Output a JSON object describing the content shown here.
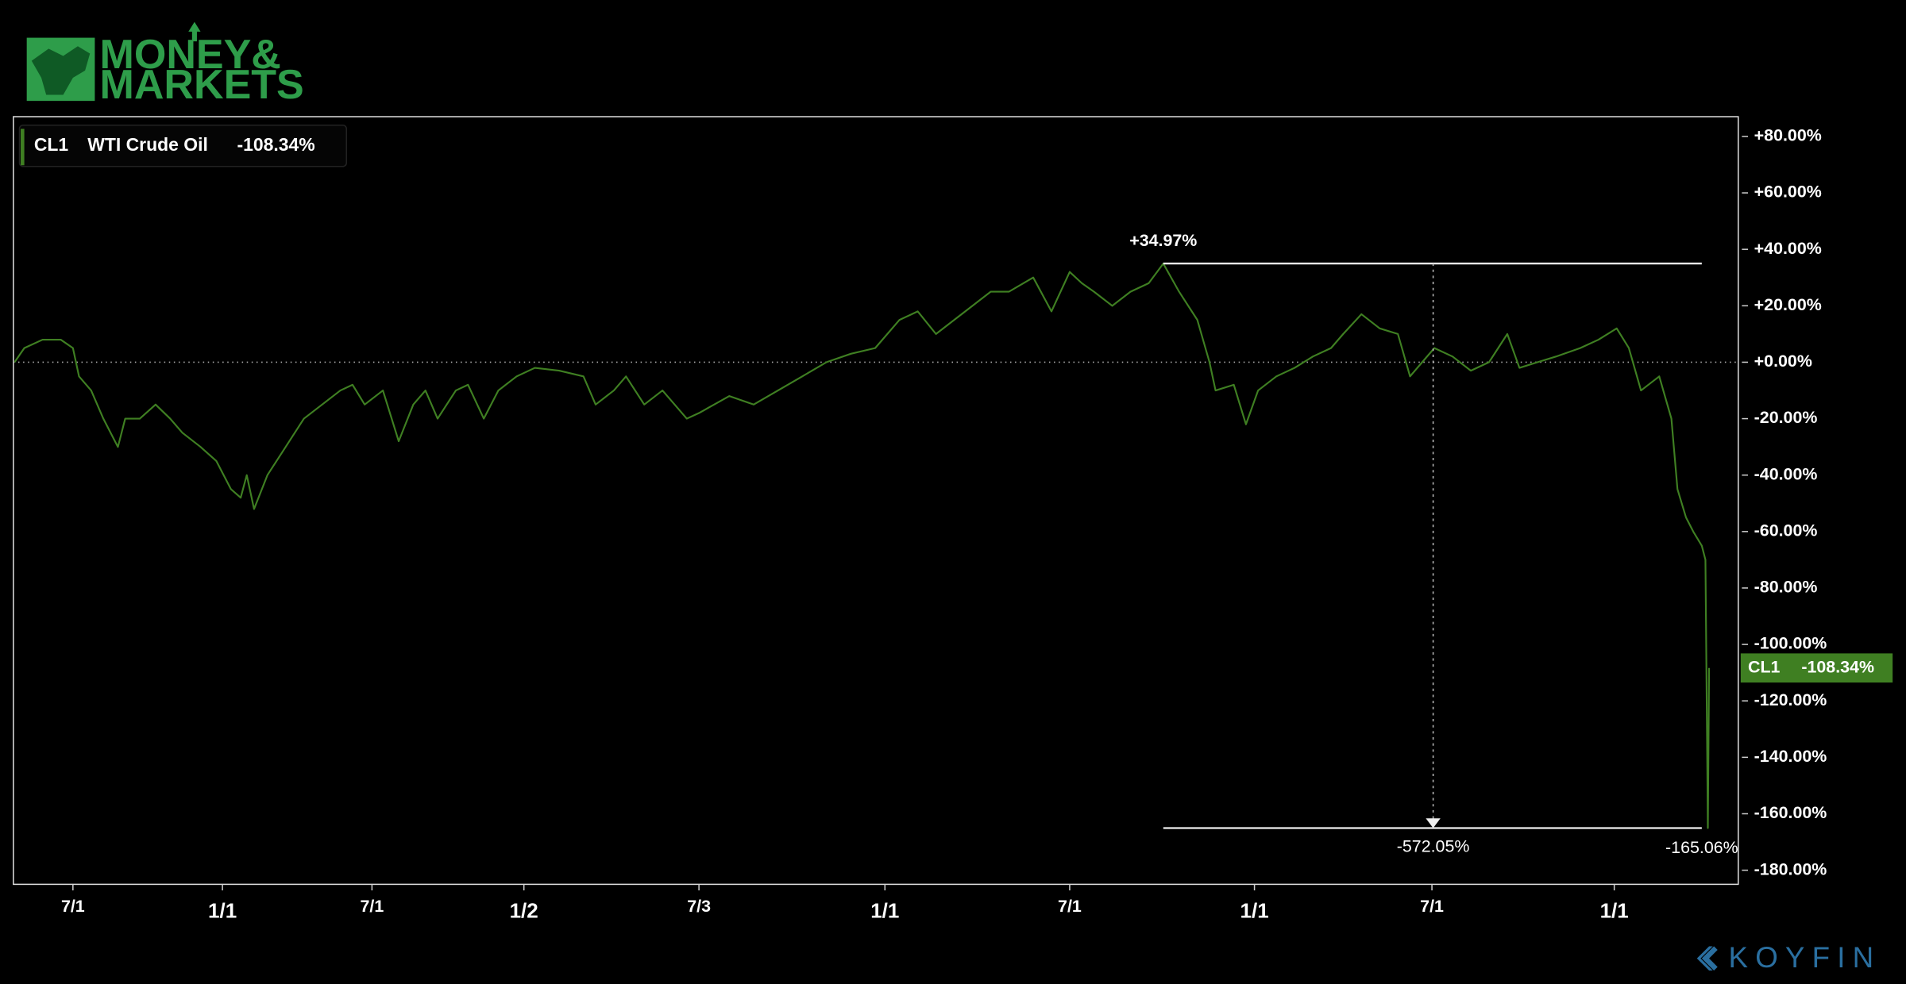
{
  "chart_data": {
    "type": "line",
    "logo": [
      "MONEY&",
      "MARKETS"
    ],
    "brand": "KOYFIN",
    "ticker": "CL1",
    "series": [
      {
        "name": "WTI Crude Oil",
        "color": "#3f7f22",
        "x": [
          1,
          9,
          24,
          39,
          49,
          54,
          64,
          74,
          86,
          92,
          104,
          117,
          129,
          139,
          154,
          167,
          179,
          187,
          192,
          198,
          209,
          224,
          239,
          254,
          269,
          279,
          289,
          304,
          317,
          329,
          339,
          349,
          364,
          374,
          387,
          399,
          414,
          429,
          449,
          469,
          479,
          494,
          504,
          519,
          534,
          554,
          564,
          589,
          609,
          629,
          649,
          669,
          689,
          709,
          729,
          744,
          759,
          774,
          789,
          804,
          819,
          839,
          854,
          869,
          879,
          889,
          904,
          919,
          934,
          946,
          959,
          974,
          984,
          989,
          1004,
          1014,
          1024,
          1039,
          1054,
          1069,
          1084,
          1094,
          1109,
          1124,
          1139,
          1149,
          1159,
          1169,
          1184,
          1199,
          1214,
          1229,
          1239,
          1254,
          1269,
          1289,
          1304,
          1319,
          1329,
          1339,
          1354,
          1364,
          1369,
          1376,
          1382,
          1389,
          1392,
          1394,
          1395
        ],
        "values": [
          0,
          5,
          8,
          8,
          5,
          -5,
          -10,
          -20,
          -30,
          -20,
          -20,
          -15,
          -20,
          -25,
          -30,
          -35,
          -45,
          -48,
          -40,
          -52,
          -40,
          -30,
          -20,
          -15,
          -10,
          -8,
          -15,
          -10,
          -28,
          -15,
          -10,
          -20,
          -10,
          -8,
          -20,
          -10,
          -5,
          -2,
          -3,
          -5,
          -15,
          -10,
          -5,
          -15,
          -10,
          -20,
          -18,
          -12,
          -15,
          -10,
          -5,
          0,
          3,
          5,
          15,
          18,
          10,
          15,
          20,
          25,
          25,
          30,
          18,
          32,
          28,
          25,
          20,
          25,
          28,
          34.97,
          25,
          15,
          0,
          -10,
          -8,
          -22,
          -10,
          -5,
          -2,
          2,
          5,
          10,
          17,
          12,
          10,
          -5,
          0,
          5,
          2,
          -3,
          0,
          10,
          -2,
          0,
          2,
          5,
          8,
          12,
          5,
          -10,
          -5,
          -20,
          -45,
          -55,
          -60,
          -65,
          -70,
          -165.06,
          -108.34
        ]
      }
    ],
    "xlim": [
      0,
      1419
    ],
    "xticks": [
      {
        "value": 49,
        "label": "7/1"
      },
      {
        "value": 172,
        "label": "1/1"
      },
      {
        "value": 295,
        "label": "7/1"
      },
      {
        "value": 420,
        "label": "1/2"
      },
      {
        "value": 564,
        "label": "7/3"
      },
      {
        "value": 717,
        "label": "1/1"
      },
      {
        "value": 869,
        "label": "7/1"
      },
      {
        "value": 1021,
        "label": "1/1"
      },
      {
        "value": 1167,
        "label": "7/1"
      },
      {
        "value": 1317,
        "label": "1/1"
      }
    ],
    "ylim": [
      -185,
      87
    ],
    "yticks": [
      {
        "value": 80,
        "label": "+80.00%"
      },
      {
        "value": 60,
        "label": "+60.00%"
      },
      {
        "value": 40,
        "label": "+40.00%"
      },
      {
        "value": 20,
        "label": "+20.00%"
      },
      {
        "value": 0,
        "label": "+0.00%"
      },
      {
        "value": -20,
        "label": "-20.00%"
      },
      {
        "value": -40,
        "label": "-40.00%"
      },
      {
        "value": -60,
        "label": "-60.00%"
      },
      {
        "value": -80,
        "label": "-80.00%"
      },
      {
        "value": -100,
        "label": "-100.00%"
      },
      {
        "value": -120,
        "label": "-120.00%"
      },
      {
        "value": -140,
        "label": "-140.00%"
      },
      {
        "value": -160,
        "label": "-160.00%"
      },
      {
        "value": -180,
        "label": "-180.00%"
      }
    ],
    "max": {
      "value": 34.97,
      "label": "+34.97%"
    },
    "min": {
      "value": -165.06,
      "label": "-165.06%"
    },
    "change_label": "-572.05%",
    "last": {
      "value": -108.34,
      "label": "-108.34%"
    }
  }
}
